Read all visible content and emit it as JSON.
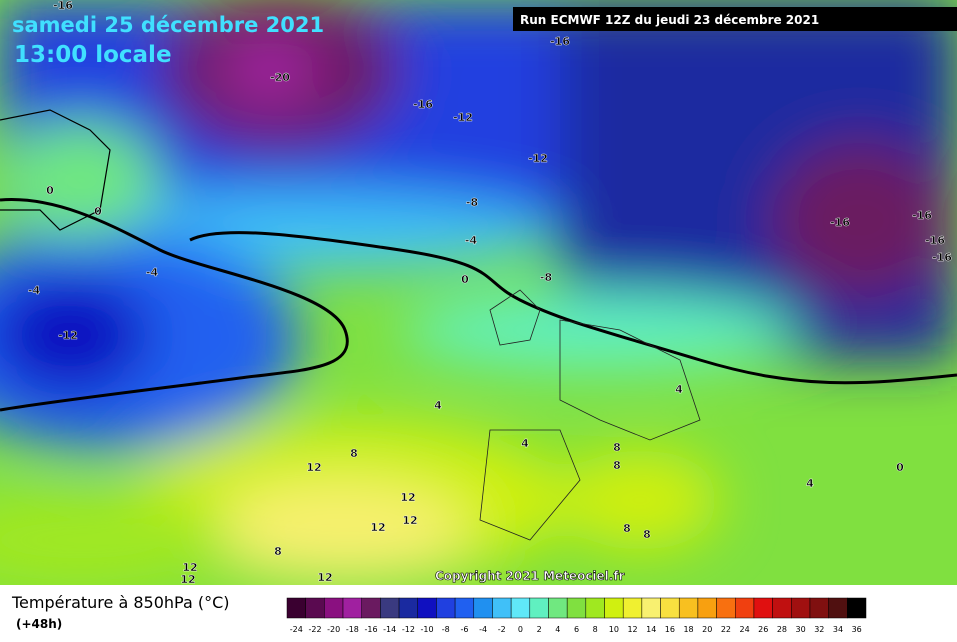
{
  "header": {
    "title": "samedi 25 décembre 2021",
    "time": "13:00 locale",
    "run": "Run ECMWF 12Z du jeudi 23 décembre 2021"
  },
  "map": {
    "contour_labels": [
      "-16",
      "-20",
      "-16",
      "-12",
      "-12",
      "-8",
      "-4",
      "-8",
      "0",
      "-16",
      "-16",
      "-16",
      "-16",
      "-16",
      "0",
      "0",
      "-4",
      "-4",
      "-12",
      "4",
      "4",
      "4",
      "8",
      "12",
      "8",
      "8",
      "12",
      "12",
      "12",
      "8",
      "12",
      "12",
      "12",
      "8",
      "8",
      "0",
      "4"
    ]
  },
  "footer": {
    "label": "Température à 850hPa (°C)",
    "step": "(+48h)",
    "copyright": "Copyright 2021 Meteociel.fr"
  },
  "legend": {
    "labels": [
      "-24",
      "-22",
      "-20",
      "-18",
      "-16",
      "-14",
      "-12",
      "-10",
      "-8",
      "-6",
      "-4",
      "-2",
      "0",
      "2",
      "4",
      "6",
      "8",
      "10",
      "12",
      "14",
      "16",
      "18",
      "20",
      "22",
      "24",
      "26",
      "28",
      "30",
      "32",
      "34",
      "36"
    ],
    "colors": [
      "#3a0030",
      "#5a0a50",
      "#8a1080",
      "#a020a0",
      "#6a1a60",
      "#3a3a80",
      "#1a2aa0",
      "#1010c0",
      "#2040e0",
      "#2060f0",
      "#2090f0",
      "#40c0f8",
      "#60e8f8",
      "#60f0c0",
      "#70e880",
      "#80e040",
      "#a0e820",
      "#d0f010",
      "#f0f030",
      "#f8f070",
      "#f8e040",
      "#f8c020",
      "#f8a010",
      "#f87010",
      "#f04010",
      "#e01010",
      "#c01010",
      "#a01010",
      "#801010",
      "#501010",
      "#000000"
    ]
  }
}
